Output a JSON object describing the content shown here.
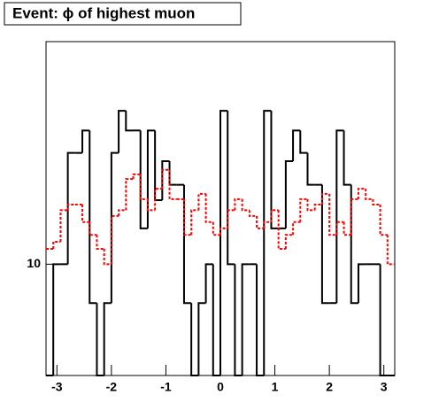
{
  "chart_data": {
    "type": "histogram",
    "title": "Event: ϕ of highest muon",
    "bins": [
      -3.2,
      -3.0667,
      -2.9333,
      -2.8,
      -2.6667,
      -2.5333,
      -2.4,
      -2.2667,
      -2.1333,
      -2,
      -1.8667,
      -1.7333,
      -1.6,
      -1.4667,
      -1.3333,
      -1.2,
      -1.0667,
      -0.9333,
      -0.8,
      -0.6667,
      -0.5333,
      -0.4,
      -0.2667,
      -0.1333,
      0,
      0.1333,
      0.2667,
      0.4,
      0.5333,
      0.6667,
      0.8,
      0.9333,
      1.0667,
      1.2,
      1.3333,
      1.4667,
      1.6,
      1.7333,
      1.8667,
      2,
      2.1333,
      2.2667,
      2.4,
      2.5333,
      2.6667,
      2.8,
      2.9333,
      3.0667,
      3.2
    ],
    "series": [
      {
        "color": "#000000",
        "line_style": "solid",
        "values": [
          0,
          10,
          10,
          20,
          20,
          23,
          7.85,
          0,
          7.85,
          20,
          26,
          23,
          23,
          12.5,
          23,
          14.9,
          19,
          16.4,
          16.4,
          7.85,
          0,
          7.85,
          10,
          0,
          26,
          10,
          0,
          10,
          10,
          0,
          26,
          12.5,
          12.5,
          19,
          23,
          20,
          16.4,
          16.4,
          7.85,
          7.85,
          23,
          16.4,
          7.85,
          10,
          10,
          10,
          0,
          0
        ]
      },
      {
        "color": "#ff0000",
        "line_style": "dashed",
        "values": [
          11,
          11.5,
          14,
          14.5,
          14.5,
          13,
          12,
          11,
          10,
          13.5,
          14,
          17,
          17.5,
          15,
          14,
          16,
          18,
          15,
          15,
          12,
          14,
          15.5,
          13,
          12,
          12.5,
          14,
          15,
          14,
          13.5,
          12.5,
          13,
          14,
          11,
          12,
          13,
          15,
          14,
          14.5,
          15.5,
          12,
          13,
          12,
          15,
          16,
          15,
          14.5,
          12,
          10
        ]
      }
    ],
    "xlim": [
      -3.2,
      3.2
    ],
    "xticks": [
      -3,
      -2,
      -1,
      0,
      1,
      2,
      3
    ],
    "ylim": [
      5,
      40
    ],
    "yticks": [
      10
    ],
    "log_y": true
  }
}
